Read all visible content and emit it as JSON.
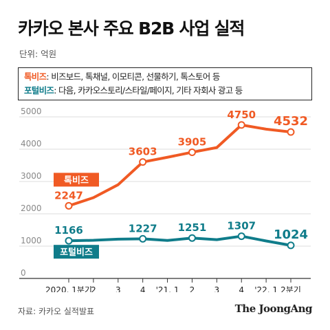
{
  "title": "카카오 본사 주요 B2B 사업 실적",
  "unit_text": "단위: 억원",
  "legend": [
    {
      "key": "톡비즈",
      "desc": ": 비즈보드, 톡채널, 이모티콘, 선물하기, 톡스토어 등",
      "color": "#f05a24"
    },
    {
      "key": "포털비즈",
      "desc": ": 다음, 카카오스토리/스타일/페이지, 기타 자회사 광고 등",
      "color": "#0f7c8a"
    }
  ],
  "source_text": "자료: 카카오 실적발표",
  "logo_text": "The JoongAng",
  "chart_data": {
    "type": "line",
    "categories": [
      "2020. 1분기",
      "2",
      "3",
      "4",
      "'21. 1",
      "2",
      "3",
      "4",
      "'22. 1",
      "2분기"
    ],
    "ylim": [
      0,
      5000
    ],
    "yticks": [
      "0",
      "1000",
      "2000",
      "3000",
      "4000",
      "5000"
    ],
    "grid": true,
    "series": [
      {
        "name": "톡비즈",
        "color": "#f05a24",
        "values": [
          2247,
          2500,
          2900,
          3603,
          3750,
          3905,
          4050,
          4750,
          4620,
          4532
        ],
        "labels": [
          "2247",
          "",
          "",
          "3603",
          "",
          "3905",
          "",
          "4750",
          "",
          "4532"
        ]
      },
      {
        "name": "포털비즈",
        "color": "#0f7c8a",
        "values": [
          1166,
          1180,
          1215,
          1227,
          1175,
          1251,
          1200,
          1307,
          1160,
          1024
        ],
        "labels": [
          "1166",
          "",
          "",
          "1227",
          "",
          "1251",
          "",
          "1307",
          "",
          "1024"
        ]
      }
    ]
  }
}
